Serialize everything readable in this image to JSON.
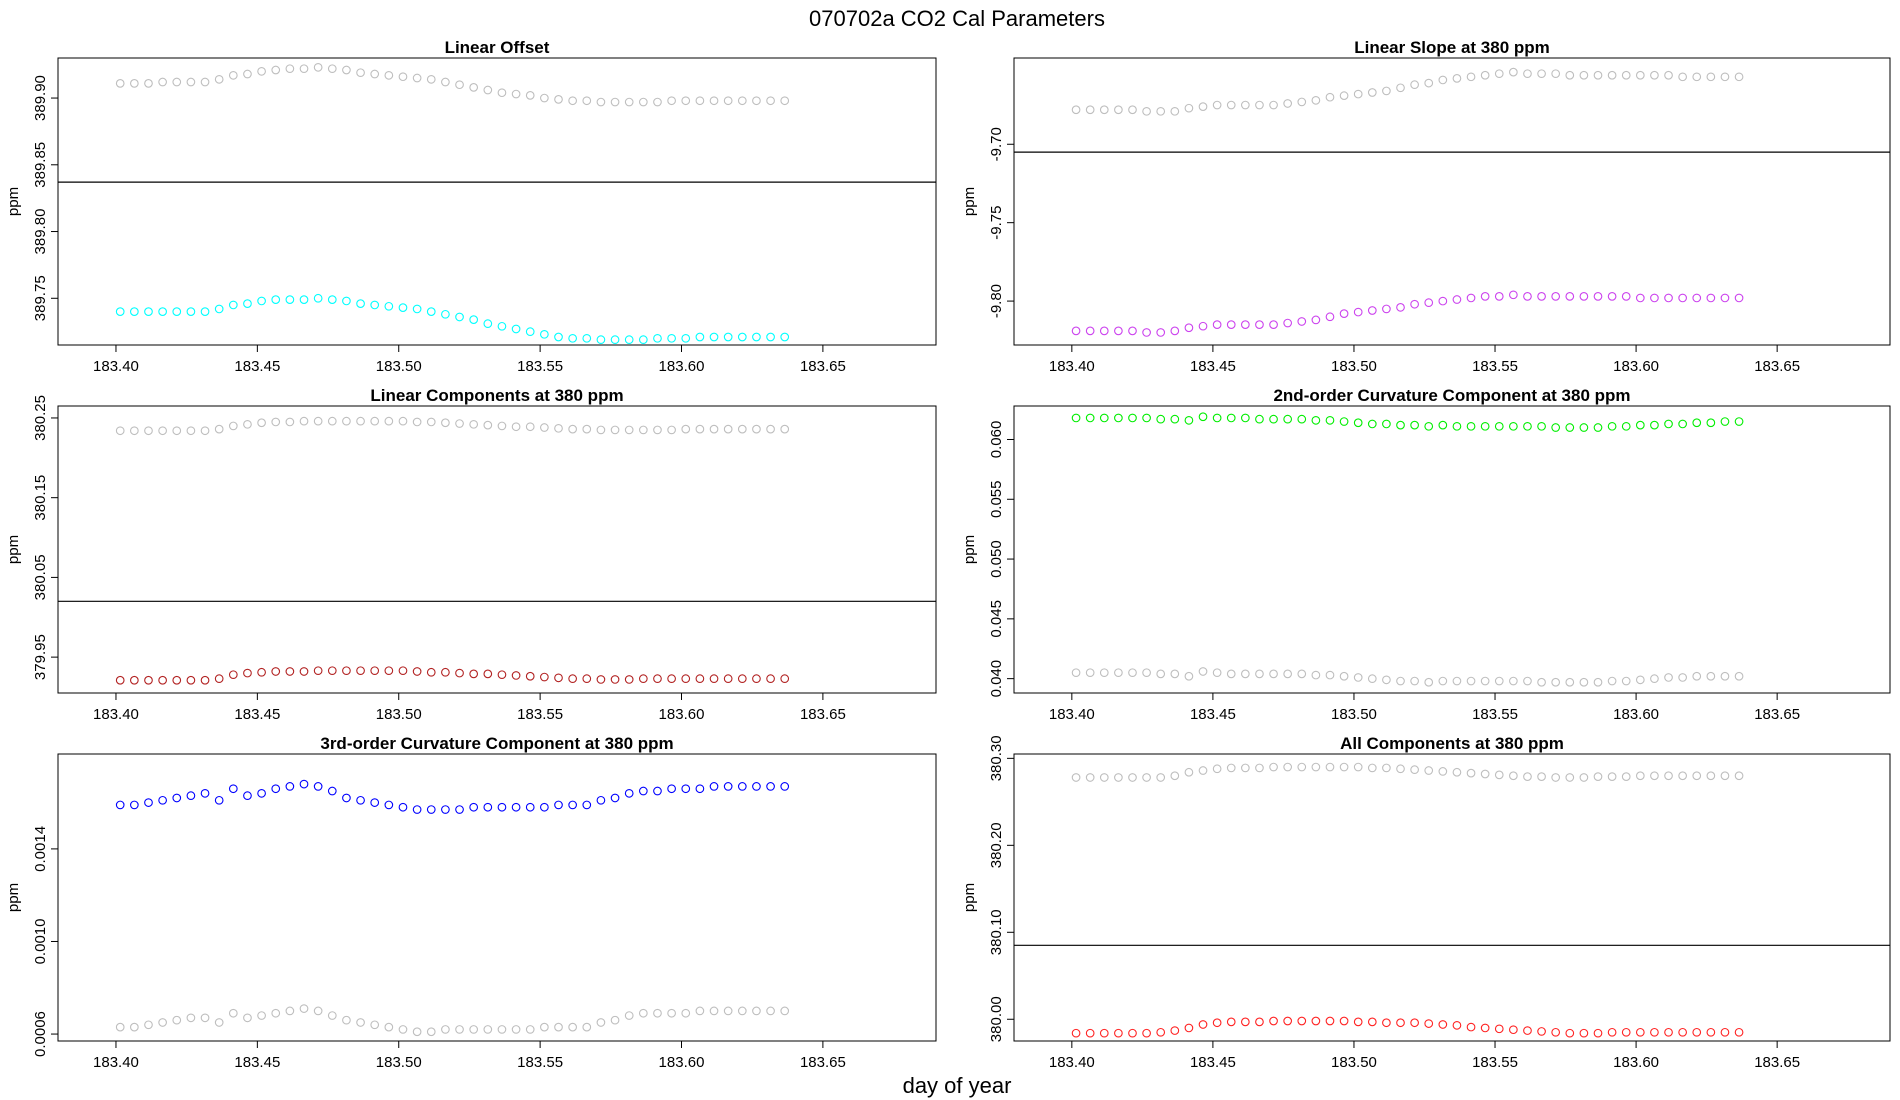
{
  "figure": {
    "title": "070702a   CO2 Cal Parameters",
    "xlabel": "day of year"
  },
  "chart_data": [
    {
      "type": "scatter",
      "title": "Linear Offset",
      "ylabel": "ppm",
      "xlim": [
        183.385,
        188.69
      ],
      "ylim": [
        389.715,
        389.93
      ],
      "xticks": [
        183.4,
        183.45,
        183.5,
        183.55,
        183.6,
        183.65
      ],
      "xtick_labels": [
        "183.40",
        "183.45",
        "183.50",
        "183.55",
        "183.60",
        "183.65"
      ],
      "yticks": [
        389.75,
        389.8,
        389.85,
        389.9
      ],
      "ytick_labels": [
        "389.75",
        "389.80",
        "389.85",
        "389.90"
      ],
      "hline": 389.837,
      "x_start": 183.4015,
      "x_step": 0.005,
      "series": [
        {
          "color": "#bebebe",
          "values": [
            389.911,
            389.911,
            389.911,
            389.912,
            389.912,
            389.912,
            389.912,
            389.914,
            389.917,
            389.918,
            389.92,
            389.921,
            389.922,
            389.922,
            389.923,
            389.922,
            389.921,
            389.919,
            389.918,
            389.917,
            389.916,
            389.915,
            389.914,
            389.912,
            389.91,
            389.908,
            389.906,
            389.904,
            389.903,
            389.902,
            389.9,
            389.899,
            389.898,
            389.898,
            389.897,
            389.897,
            389.897,
            389.897,
            389.897,
            389.898,
            389.898,
            389.898,
            389.898,
            389.898,
            389.898,
            389.898,
            389.898,
            389.898
          ]
        },
        {
          "color": "#00ffff",
          "values": [
            389.74,
            389.74,
            389.74,
            389.74,
            389.74,
            389.74,
            389.74,
            389.742,
            389.745,
            389.746,
            389.748,
            389.749,
            389.749,
            389.749,
            389.75,
            389.749,
            389.748,
            389.746,
            389.745,
            389.744,
            389.743,
            389.742,
            389.74,
            389.738,
            389.736,
            389.734,
            389.731,
            389.729,
            389.727,
            389.725,
            389.723,
            389.721,
            389.72,
            389.72,
            389.719,
            389.719,
            389.719,
            389.719,
            389.72,
            389.72,
            389.72,
            389.721,
            389.721,
            389.721,
            389.721,
            389.721,
            389.721,
            389.721
          ]
        }
      ]
    },
    {
      "type": "scatter",
      "title": "Linear Slope at 380 ppm",
      "ylabel": "ppm",
      "xlim": [
        183.385,
        183.69
      ],
      "ylim": [
        -9.828,
        -9.645
      ],
      "xticks": [
        183.4,
        183.45,
        183.5,
        183.55,
        183.6,
        183.65
      ],
      "xtick_labels": [
        "183.40",
        "183.45",
        "183.50",
        "183.55",
        "183.60",
        "183.65"
      ],
      "yticks": [
        -9.8,
        -9.75,
        -9.7
      ],
      "ytick_labels": [
        "-9.80",
        "-9.75",
        "-9.70"
      ],
      "hline": -9.705,
      "x_start": 183.4015,
      "x_step": 0.005,
      "series": [
        {
          "color": "#bebebe",
          "values": [
            -9.678,
            -9.678,
            -9.678,
            -9.678,
            -9.678,
            -9.679,
            -9.679,
            -9.679,
            -9.677,
            -9.676,
            -9.675,
            -9.675,
            -9.675,
            -9.675,
            -9.675,
            -9.674,
            -9.673,
            -9.672,
            -9.67,
            -9.669,
            -9.668,
            -9.667,
            -9.666,
            -9.664,
            -9.662,
            -9.661,
            -9.659,
            -9.658,
            -9.657,
            -9.656,
            -9.655,
            -9.654,
            -9.655,
            -9.655,
            -9.655,
            -9.656,
            -9.656,
            -9.656,
            -9.656,
            -9.656,
            -9.656,
            -9.656,
            -9.656,
            -9.657,
            -9.657,
            -9.657,
            -9.657,
            -9.657
          ]
        },
        {
          "color": "#cc44ee",
          "values": [
            -9.819,
            -9.819,
            -9.819,
            -9.819,
            -9.819,
            -9.82,
            -9.82,
            -9.819,
            -9.817,
            -9.816,
            -9.815,
            -9.815,
            -9.815,
            -9.815,
            -9.815,
            -9.814,
            -9.813,
            -9.812,
            -9.81,
            -9.808,
            -9.807,
            -9.806,
            -9.805,
            -9.804,
            -9.802,
            -9.801,
            -9.8,
            -9.799,
            -9.798,
            -9.797,
            -9.797,
            -9.796,
            -9.797,
            -9.797,
            -9.797,
            -9.797,
            -9.797,
            -9.797,
            -9.797,
            -9.797,
            -9.798,
            -9.798,
            -9.798,
            -9.798,
            -9.798,
            -9.798,
            -9.798,
            -9.798
          ]
        }
      ]
    },
    {
      "type": "scatter",
      "title": "Linear Components at 380 ppm",
      "ylabel": "ppm",
      "xlim": [
        183.385,
        183.69
      ],
      "ylim": [
        379.905,
        380.265
      ],
      "xticks": [
        183.4,
        183.45,
        183.5,
        183.55,
        183.6,
        183.65
      ],
      "xtick_labels": [
        "183.40",
        "183.45",
        "183.50",
        "183.55",
        "183.60",
        "183.65"
      ],
      "yticks": [
        379.95,
        380.05,
        380.15,
        380.25
      ],
      "ytick_labels": [
        "379.95",
        "380.05",
        "380.15",
        "380.25"
      ],
      "hline": 380.02,
      "x_start": 183.4015,
      "x_step": 0.005,
      "series": [
        {
          "color": "#bebebe",
          "values": [
            380.234,
            380.234,
            380.234,
            380.234,
            380.234,
            380.234,
            380.234,
            380.236,
            380.24,
            380.242,
            380.244,
            380.245,
            380.245,
            380.246,
            380.246,
            380.246,
            380.246,
            380.246,
            380.246,
            380.246,
            380.246,
            380.245,
            380.245,
            380.244,
            380.243,
            380.242,
            380.241,
            380.24,
            380.239,
            380.239,
            380.238,
            380.237,
            380.236,
            380.236,
            380.235,
            380.235,
            380.235,
            380.235,
            380.235,
            380.235,
            380.236,
            380.236,
            380.236,
            380.236,
            380.236,
            380.236,
            380.236,
            380.236
          ]
        },
        {
          "color": "#b22222",
          "values": [
            379.921,
            379.921,
            379.921,
            379.921,
            379.921,
            379.921,
            379.921,
            379.923,
            379.928,
            379.93,
            379.931,
            379.932,
            379.932,
            379.932,
            379.933,
            379.933,
            379.933,
            379.933,
            379.933,
            379.933,
            379.933,
            379.932,
            379.931,
            379.931,
            379.93,
            379.929,
            379.929,
            379.928,
            379.927,
            379.926,
            379.925,
            379.924,
            379.923,
            379.923,
            379.922,
            379.922,
            379.922,
            379.923,
            379.923,
            379.923,
            379.923,
            379.923,
            379.923,
            379.923,
            379.923,
            379.923,
            379.923,
            379.923
          ]
        }
      ]
    },
    {
      "type": "scatter",
      "title": "2nd-order Curvature Component at 380 ppm",
      "ylabel": "ppm",
      "xlim": [
        183.385,
        183.69
      ],
      "ylim": [
        0.0388,
        0.0628
      ],
      "xticks": [
        183.4,
        183.45,
        183.5,
        183.55,
        183.6,
        183.65
      ],
      "xtick_labels": [
        "183.40",
        "183.45",
        "183.50",
        "183.55",
        "183.60",
        "183.65"
      ],
      "yticks": [
        0.04,
        0.045,
        0.05,
        0.055,
        0.06
      ],
      "ytick_labels": [
        "0.040",
        "0.045",
        "0.050",
        "0.055",
        "0.060"
      ],
      "x_start": 183.4015,
      "x_step": 0.005,
      "series": [
        {
          "color": "#00ee00",
          "values": [
            0.0618,
            0.0618,
            0.0618,
            0.0618,
            0.0618,
            0.0618,
            0.0617,
            0.0617,
            0.0616,
            0.0619,
            0.0618,
            0.0618,
            0.0618,
            0.0617,
            0.0617,
            0.0617,
            0.0617,
            0.0616,
            0.0616,
            0.0615,
            0.0614,
            0.0613,
            0.0613,
            0.0612,
            0.0612,
            0.0611,
            0.0612,
            0.0611,
            0.0611,
            0.0611,
            0.0611,
            0.0611,
            0.0611,
            0.0611,
            0.061,
            0.061,
            0.061,
            0.061,
            0.0611,
            0.0611,
            0.0612,
            0.0612,
            0.0613,
            0.0613,
            0.0614,
            0.0614,
            0.0615,
            0.0615
          ]
        },
        {
          "color": "#bebebe",
          "values": [
            0.0405,
            0.0405,
            0.0405,
            0.0405,
            0.0405,
            0.0405,
            0.0404,
            0.0404,
            0.0402,
            0.0406,
            0.0405,
            0.0404,
            0.0404,
            0.0404,
            0.0404,
            0.0404,
            0.0404,
            0.0403,
            0.0403,
            0.0402,
            0.0401,
            0.04,
            0.0399,
            0.0398,
            0.0398,
            0.0397,
            0.0398,
            0.0398,
            0.0398,
            0.0398,
            0.0398,
            0.0398,
            0.0398,
            0.0397,
            0.0397,
            0.0397,
            0.0397,
            0.0397,
            0.0398,
            0.0398,
            0.0399,
            0.04,
            0.0401,
            0.0401,
            0.0402,
            0.0402,
            0.0402,
            0.0402
          ]
        }
      ]
    },
    {
      "type": "scatter",
      "title": "3rd-order Curvature Component at 380 ppm",
      "ylabel": "ppm",
      "xlim": [
        183.385,
        183.69
      ],
      "ylim": [
        0.00057,
        0.00181
      ],
      "xticks": [
        183.4,
        183.45,
        183.5,
        183.55,
        183.6,
        183.65
      ],
      "xtick_labels": [
        "183.40",
        "183.45",
        "183.50",
        "183.55",
        "183.60",
        "183.65"
      ],
      "yticks": [
        0.0006,
        0.001,
        0.0014
      ],
      "ytick_labels": [
        "0.0006",
        "0.0010",
        "0.0014"
      ],
      "x_start": 183.4015,
      "x_step": 0.005,
      "series": [
        {
          "color": "#0000ff",
          "values": [
            0.00159,
            0.00159,
            0.0016,
            0.00161,
            0.00162,
            0.00163,
            0.00164,
            0.00161,
            0.00166,
            0.00163,
            0.00164,
            0.00166,
            0.00167,
            0.00168,
            0.00167,
            0.00165,
            0.00162,
            0.00161,
            0.0016,
            0.00159,
            0.00158,
            0.00157,
            0.00157,
            0.00157,
            0.00157,
            0.00158,
            0.00158,
            0.00158,
            0.00158,
            0.00158,
            0.00158,
            0.00159,
            0.00159,
            0.00159,
            0.00161,
            0.00162,
            0.00164,
            0.00165,
            0.00165,
            0.00166,
            0.00166,
            0.00166,
            0.00167,
            0.00167,
            0.00167,
            0.00167,
            0.00167,
            0.00167
          ]
        },
        {
          "color": "#bebebe",
          "values": [
            0.00063,
            0.00063,
            0.00064,
            0.00065,
            0.00066,
            0.00067,
            0.00067,
            0.00065,
            0.00069,
            0.00067,
            0.00068,
            0.00069,
            0.0007,
            0.00071,
            0.0007,
            0.00068,
            0.00066,
            0.00065,
            0.00064,
            0.00063,
            0.00062,
            0.00061,
            0.00061,
            0.00062,
            0.00062,
            0.00062,
            0.00062,
            0.00062,
            0.00062,
            0.00062,
            0.00063,
            0.00063,
            0.00063,
            0.00063,
            0.00065,
            0.00066,
            0.00068,
            0.00069,
            0.00069,
            0.00069,
            0.00069,
            0.0007,
            0.0007,
            0.0007,
            0.0007,
            0.0007,
            0.0007,
            0.0007
          ]
        }
      ]
    },
    {
      "type": "scatter",
      "title": "All Components at 380 ppm",
      "ylabel": "ppm",
      "xlim": [
        183.385,
        183.69
      ],
      "ylim": [
        379.975,
        380.305
      ],
      "xticks": [
        183.4,
        183.45,
        183.5,
        183.55,
        183.6,
        183.65
      ],
      "xtick_labels": [
        "183.40",
        "183.45",
        "183.50",
        "183.55",
        "183.60",
        "183.65"
      ],
      "yticks": [
        380.0,
        380.1,
        380.2,
        380.3
      ],
      "ytick_labels": [
        "380.00",
        "380.10",
        "380.20",
        "380.30"
      ],
      "hline": 380.085,
      "x_start": 183.4015,
      "x_step": 0.005,
      "series": [
        {
          "color": "#bebebe",
          "values": [
            380.278,
            380.278,
            380.278,
            380.278,
            380.278,
            380.278,
            380.278,
            380.28,
            380.284,
            380.286,
            380.288,
            380.289,
            380.289,
            380.289,
            380.29,
            380.29,
            380.29,
            380.29,
            380.29,
            380.29,
            380.29,
            380.289,
            380.289,
            380.288,
            380.287,
            380.286,
            380.285,
            380.284,
            380.283,
            380.282,
            380.281,
            380.28,
            380.279,
            380.279,
            380.278,
            380.278,
            380.278,
            380.279,
            380.279,
            380.279,
            380.28,
            380.28,
            380.28,
            380.28,
            380.28,
            380.28,
            380.28,
            380.28
          ]
        },
        {
          "color": "#ff2222",
          "values": [
            379.984,
            379.984,
            379.984,
            379.984,
            379.984,
            379.984,
            379.985,
            379.987,
            379.99,
            379.994,
            379.996,
            379.997,
            379.997,
            379.997,
            379.998,
            379.998,
            379.998,
            379.998,
            379.998,
            379.998,
            379.997,
            379.997,
            379.996,
            379.996,
            379.996,
            379.995,
            379.994,
            379.993,
            379.991,
            379.99,
            379.989,
            379.988,
            379.987,
            379.986,
            379.985,
            379.984,
            379.984,
            379.984,
            379.985,
            379.985,
            379.985,
            379.985,
            379.985,
            379.985,
            379.985,
            379.985,
            379.985,
            379.985
          ]
        }
      ]
    }
  ]
}
